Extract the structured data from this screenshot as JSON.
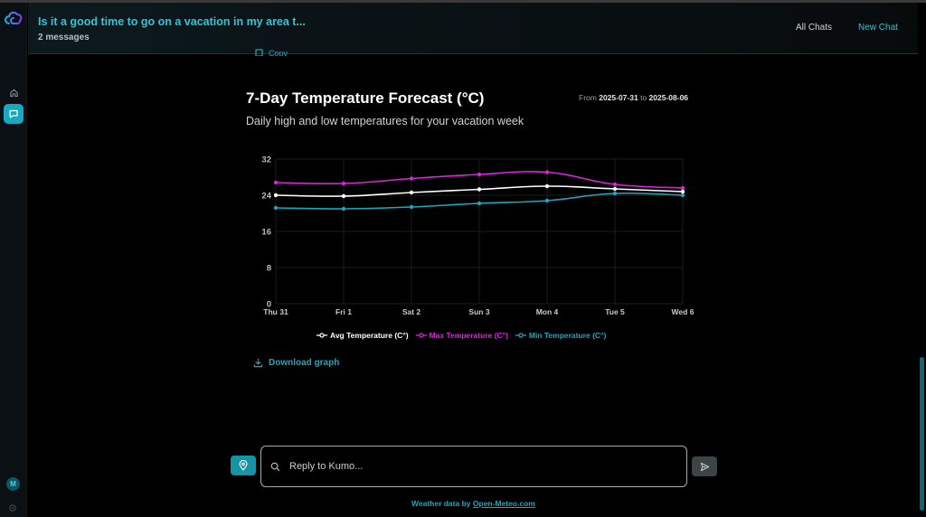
{
  "app": {
    "logo": "kumo-cloud-logo"
  },
  "rail": {
    "items": [
      {
        "name": "home",
        "icon": "home-icon",
        "active": false
      },
      {
        "name": "chat",
        "icon": "chat-icon",
        "active": true
      }
    ],
    "avatar_initial": "M"
  },
  "header": {
    "title": "Is it a good time to go on a vacation in my area t...",
    "subtitle": "2 messages",
    "all_chats": "All Chats",
    "new_chat": "New Chat"
  },
  "message": {
    "copy_label": "Copy"
  },
  "chart_header": {
    "title": "7-Day Temperature Forecast (°C)",
    "range_from_label": "From",
    "range_from": "2025-07-31",
    "range_to_label": "to",
    "range_to": "2025-08-06",
    "subtitle": "Daily high and low temperatures for your vacation week"
  },
  "chart_data": {
    "type": "line",
    "title": "7-Day Temperature Forecast (°C)",
    "subtitle": "Daily high and low temperatures for your vacation week",
    "categories": [
      "Thu 31",
      "Fri 1",
      "Sat 2",
      "Sun 3",
      "Mon 4",
      "Tue 5",
      "Wed 6"
    ],
    "series": [
      {
        "name": "Avg Temperature (C°)",
        "color": "#ffffff",
        "values": [
          24.0,
          23.8,
          24.6,
          25.3,
          26.0,
          25.4,
          24.8
        ]
      },
      {
        "name": "Max Temperature (C°)",
        "color": "#e020e0",
        "values": [
          26.8,
          26.6,
          27.7,
          28.6,
          29.1,
          26.4,
          25.6
        ]
      },
      {
        "name": "Min Temperature (C°)",
        "color": "#17a9c2",
        "values": [
          21.2,
          21.0,
          21.4,
          22.2,
          22.8,
          24.4,
          24.0
        ]
      }
    ],
    "yticks": [
      0,
      8,
      16,
      24,
      32
    ],
    "ylim": [
      0,
      32
    ],
    "xlabel": "",
    "ylabel": "",
    "grid": true,
    "legend_position": "bottom"
  },
  "actions": {
    "download_label": "Download graph"
  },
  "composer": {
    "placeholder": "Reply to Kumo...",
    "value": ""
  },
  "footer": {
    "prefix": "Weather data by",
    "link": "Open-Meteo.com"
  }
}
